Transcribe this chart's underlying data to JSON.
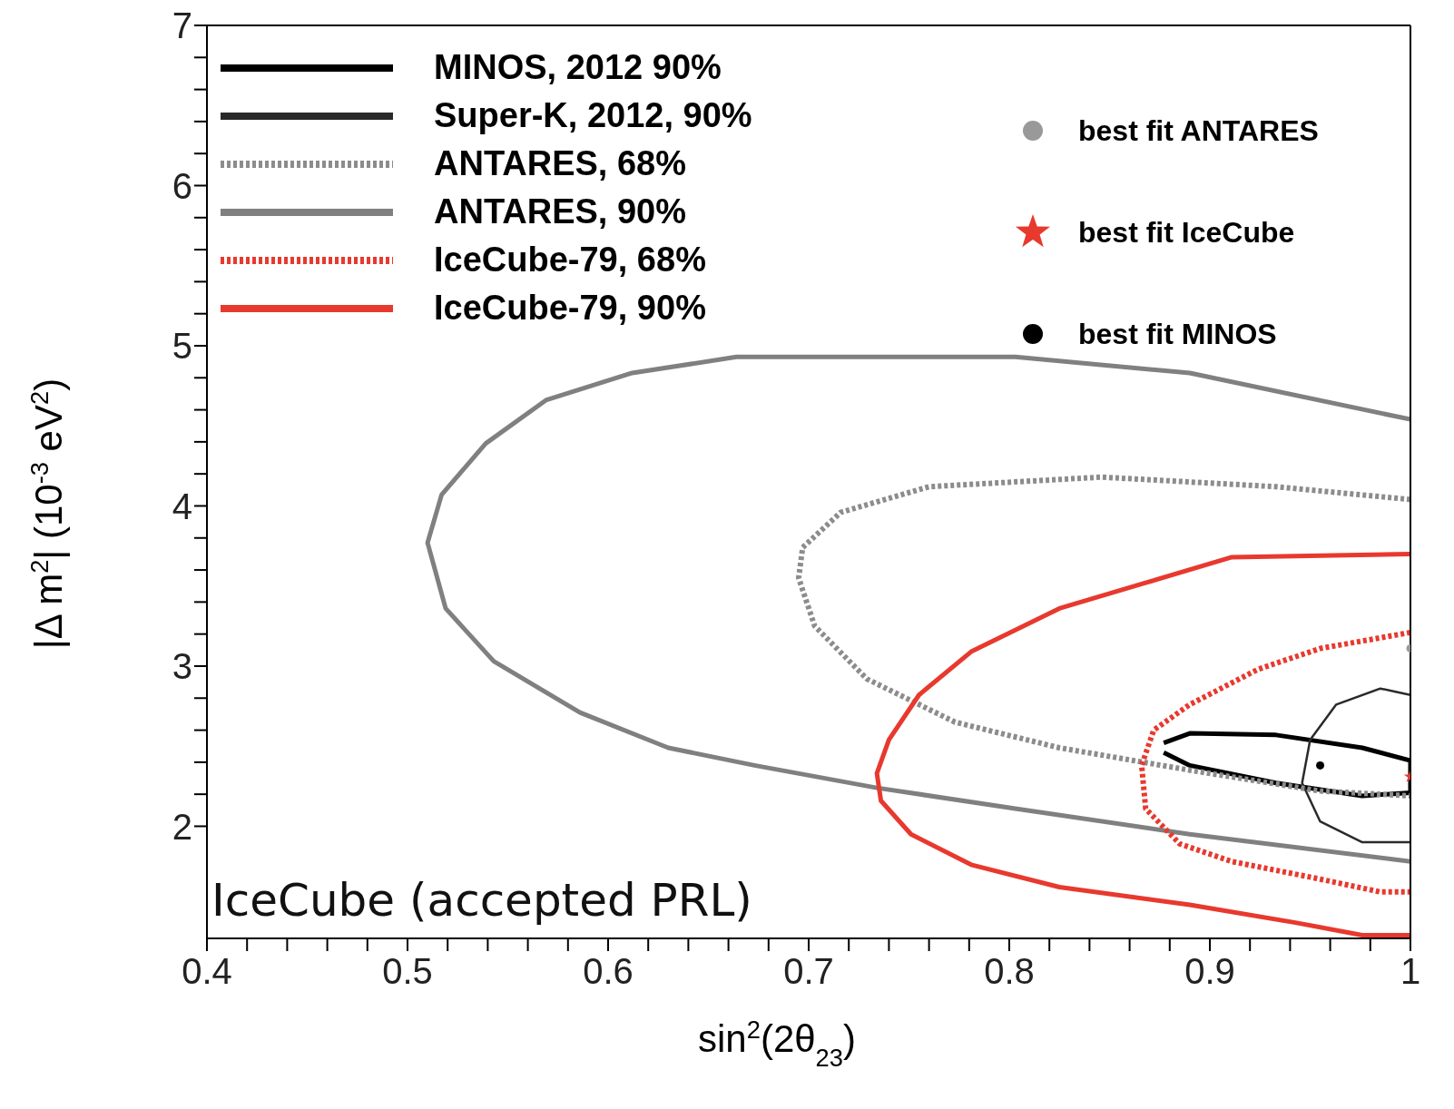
{
  "chart_data": {
    "type": "line",
    "xlabel": "sin$^{2}$(2θ$_{23}$)",
    "ylabel": "|Δ m$^{2}$| (10$^{-3}$ eV$^{2}$)",
    "xlim": [
      0.4,
      1
    ],
    "ylim": [
      1.3,
      7
    ],
    "xticks": [
      0.4,
      {
        "value": 0.42,
        "label": null
      },
      {
        "value": 0.44,
        "label": null
      },
      {
        "value": 0.46,
        "label": null
      },
      {
        "value": 0.48,
        "label": null
      },
      0.5,
      {
        "value": 0.52,
        "label": null
      },
      {
        "value": 0.54,
        "label": null
      },
      {
        "value": 0.56,
        "label": null
      },
      {
        "value": 0.58,
        "label": null
      },
      0.6,
      {
        "value": 0.62,
        "label": null
      },
      {
        "value": 0.64,
        "label": null
      },
      {
        "value": 0.66,
        "label": null
      },
      {
        "value": 0.68,
        "label": null
      },
      0.7,
      {
        "value": 0.72,
        "label": null
      },
      {
        "value": 0.74,
        "label": null
      },
      {
        "value": 0.76,
        "label": null
      },
      {
        "value": 0.78,
        "label": null
      },
      0.8,
      {
        "value": 0.82,
        "label": null
      },
      {
        "value": 0.84,
        "label": null
      },
      {
        "value": 0.86,
        "label": null
      },
      {
        "value": 0.88,
        "label": null
      },
      0.9,
      {
        "value": 0.92,
        "label": null
      },
      {
        "value": 0.94,
        "label": null
      },
      {
        "value": 0.96,
        "label": null
      },
      {
        "value": 0.98,
        "label": null
      },
      1
    ],
    "yticks": [
      2,
      {
        "value": 2.2,
        "label": null
      },
      {
        "value": 2.4,
        "label": null
      },
      {
        "value": 2.6,
        "label": null
      },
      {
        "value": 2.8,
        "label": null
      },
      3,
      {
        "value": 3.2,
        "label": null
      },
      {
        "value": 3.4,
        "label": null
      },
      {
        "value": 3.6,
        "label": null
      },
      {
        "value": 3.8,
        "label": null
      },
      4,
      {
        "value": 4.2,
        "label": null
      },
      {
        "value": 4.4,
        "label": null
      },
      {
        "value": 4.6,
        "label": null
      },
      {
        "value": 4.8,
        "label": null
      },
      5,
      {
        "value": 5.2,
        "label": null
      },
      {
        "value": 5.4,
        "label": null
      },
      {
        "value": 5.6,
        "label": null
      },
      {
        "value": 5.8,
        "label": null
      },
      6,
      {
        "value": 6.2,
        "label": null
      },
      {
        "value": 6.4,
        "label": null
      },
      {
        "value": 6.6,
        "label": null
      },
      {
        "value": 6.8,
        "label": null
      },
      7
    ],
    "legend": "top",
    "marker": "none",
    "annotations": [
      "IceCube (accepted PRL)"
    ],
    "series": [
      {
        "name": "MINOS, 2012 90%",
        "color": "#000000",
        "line_style": "solid",
        "x": [
          0.877,
          0.89,
          0.933,
          0.976,
          1.0,
          1.0,
          0.976,
          0.933,
          0.89,
          0.877
        ],
        "values": [
          2.52,
          2.58,
          2.57,
          2.49,
          2.41,
          2.21,
          2.19,
          2.27,
          2.38,
          2.46
        ]
      },
      {
        "name": "Super-K, 2012, 90%",
        "color": "#2a2a2a",
        "line_style": "solid",
        "x": [
          1.0,
          0.985,
          0.963,
          0.95,
          0.946,
          0.955,
          0.976,
          1.0
        ],
        "values": [
          2.82,
          2.86,
          2.76,
          2.54,
          2.27,
          2.03,
          1.9,
          1.9
        ]
      },
      {
        "name": "ANTARES, 68%",
        "color": "#8c8c8c",
        "line_style": "dotted",
        "x": [
          1.0,
          0.933,
          0.846,
          0.76,
          0.716,
          0.697,
          0.695,
          0.703,
          0.729,
          0.773,
          0.825,
          0.89,
          0.955,
          1.0
        ],
        "values": [
          4.04,
          4.12,
          4.18,
          4.12,
          3.96,
          3.74,
          3.55,
          3.25,
          2.92,
          2.65,
          2.49,
          2.35,
          2.22,
          2.19
        ]
      },
      {
        "name": "ANTARES, 90%",
        "color": "#808080",
        "line_style": "solid",
        "x": [
          1.0,
          0.89,
          0.803,
          0.664,
          0.612,
          0.569,
          0.539,
          0.517,
          0.51,
          0.519,
          0.543,
          0.586,
          0.63,
          0.673,
          0.734,
          0.803,
          0.89,
          1.0
        ],
        "values": [
          4.54,
          4.83,
          4.93,
          4.93,
          4.83,
          4.66,
          4.39,
          4.07,
          3.77,
          3.36,
          3.03,
          2.71,
          2.49,
          2.38,
          2.24,
          2.11,
          1.95,
          1.78
        ]
      },
      {
        "name": "IceCube-79, 68%",
        "color": "#e8392e",
        "line_style": "dotted",
        "x": [
          1.0,
          0.955,
          0.924,
          0.89,
          0.872,
          0.866,
          0.868,
          0.885,
          0.911,
          0.955,
          0.985,
          1.0
        ],
        "values": [
          3.21,
          3.11,
          2.98,
          2.76,
          2.6,
          2.38,
          2.11,
          1.89,
          1.78,
          1.67,
          1.59,
          1.59
        ]
      },
      {
        "name": "IceCube-79, 90%",
        "color": "#e8392e",
        "line_style": "solid",
        "x": [
          1.0,
          0.911,
          0.868,
          0.825,
          0.781,
          0.755,
          0.74,
          0.734,
          0.736,
          0.751,
          0.781,
          0.825,
          0.89,
          0.942,
          0.976,
          1.0
        ],
        "values": [
          3.7,
          3.68,
          3.52,
          3.36,
          3.09,
          2.82,
          2.54,
          2.33,
          2.16,
          1.95,
          1.76,
          1.62,
          1.51,
          1.4,
          1.32,
          1.32
        ]
      },
      {
        "name": "best fit ANTARES",
        "type": "scatter",
        "marker": "circle",
        "color": "#999999",
        "x": [
          1.0
        ],
        "values": [
          3.11
        ]
      },
      {
        "name": "best fit IceCube",
        "type": "scatter",
        "marker": "star",
        "color": "#e8392e",
        "x": [
          1.0
        ],
        "values": [
          2.31
        ]
      },
      {
        "name": "best fit MINOS",
        "type": "scatter",
        "marker": "circle",
        "color": "#000000",
        "x": [
          0.955
        ],
        "values": [
          2.38
        ]
      }
    ]
  }
}
